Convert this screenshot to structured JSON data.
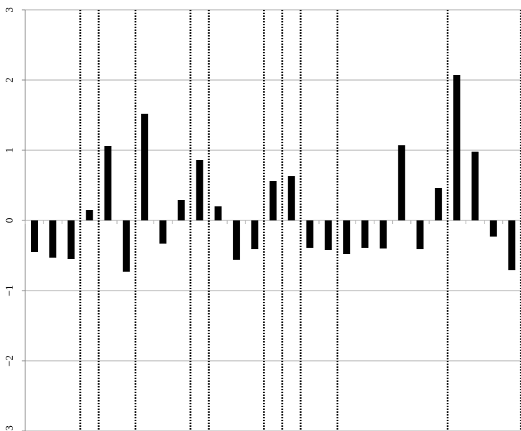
{
  "chart_data": {
    "type": "bar",
    "title": "",
    "xlabel": "",
    "ylabel": "",
    "ylim": [
      -3,
      3
    ],
    "y_ticks": [
      {
        "value": 3,
        "label": "3"
      },
      {
        "value": 2,
        "label": "2"
      },
      {
        "value": 1,
        "label": "1"
      },
      {
        "value": 0,
        "label": "0"
      },
      {
        "value": -1,
        "label": "−1"
      },
      {
        "value": -2,
        "label": "−2"
      },
      {
        "value": -3,
        "label": "−3"
      }
    ],
    "grid": true,
    "category_count": 27,
    "values": [
      -0.45,
      -0.53,
      -0.55,
      0.15,
      1.06,
      -0.73,
      1.52,
      -0.33,
      0.29,
      0.86,
      0.2,
      -0.56,
      -0.41,
      0.56,
      0.63,
      -0.39,
      -0.42,
      -0.48,
      -0.39,
      -0.4,
      1.07,
      -0.41,
      0.46,
      2.07,
      0.98,
      -0.23,
      -0.71
    ],
    "divider_after_bars": [
      2,
      3,
      5,
      8,
      9,
      12,
      13,
      14,
      16,
      22,
      26
    ],
    "bar_color": "#000000",
    "divider_style": "dotted"
  }
}
